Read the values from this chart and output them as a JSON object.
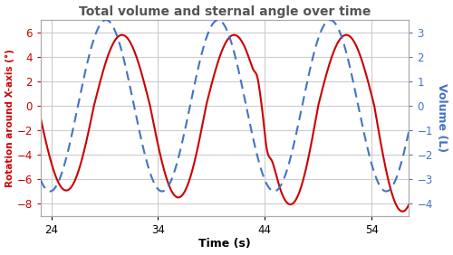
{
  "title": "Total volume and sternal angle over time",
  "xlabel": "Time (s)",
  "ylabel_left": "Rotation around X-axis (°)",
  "ylabel_right": "Volume (L)",
  "xlim": [
    23.0,
    57.5
  ],
  "ylim_left": [
    -9,
    7
  ],
  "ylim_right": [
    -4.5,
    3.5
  ],
  "xticks": [
    24,
    34,
    44,
    54
  ],
  "yticks_left": [
    -8,
    -6,
    -4,
    -2,
    0,
    2,
    4,
    6
  ],
  "yticks_right": [
    -4,
    -3,
    -2,
    -1,
    0,
    1,
    2,
    3
  ],
  "left_color": "#cc0000",
  "right_color": "#4472c4",
  "title_color": "#555555",
  "grid_color": "#cccccc",
  "background_color": "#ffffff",
  "num_points": 2000
}
